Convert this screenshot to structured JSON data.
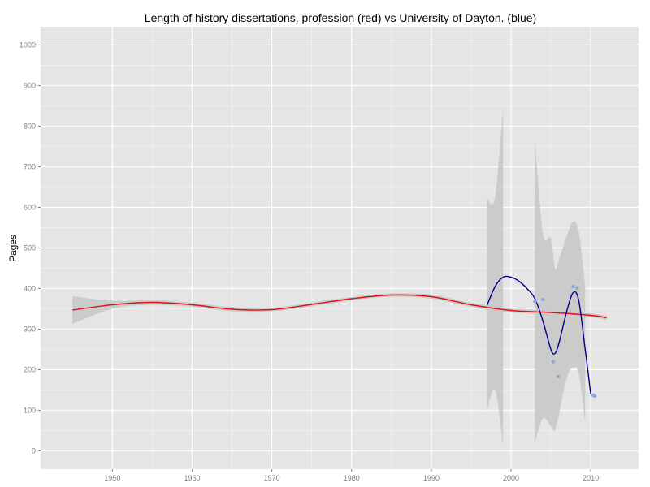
{
  "chart_data": {
    "type": "line",
    "title": "Length of history dissertations, profession (red) vs University of Dayton. (blue)",
    "xlabel": "",
    "ylabel": "Pages",
    "xlim": [
      1941,
      2016
    ],
    "ylim": [
      -45,
      1045
    ],
    "x_ticks": [
      1950,
      1960,
      1970,
      1980,
      1990,
      2000,
      2010
    ],
    "y_ticks": [
      0,
      100,
      200,
      300,
      400,
      500,
      600,
      700,
      800,
      900,
      1000
    ],
    "grid": true,
    "legend": "none",
    "colors": {
      "panel": "#e5e5e5",
      "grid_major": "#ffffff",
      "grid_minor": "#f2f2f2",
      "ribbon": "#c8c8c8",
      "profession": "#dd1111",
      "dayton": "#00008b",
      "points": "#8aa8e0",
      "tick_text": "#7f7f7f"
    },
    "series": [
      {
        "color": "red",
        "x": [
          1945,
          1950,
          1955,
          1960,
          1965,
          1970,
          1975,
          1980,
          1985,
          1990,
          1995,
          2000,
          2005,
          2010,
          2012
        ],
        "y": [
          347,
          360,
          366,
          360,
          349,
          348,
          361,
          375,
          384,
          380,
          360,
          346,
          341,
          334,
          328
        ],
        "band_low": [
          313,
          350,
          360,
          355,
          344,
          344,
          356,
          371,
          380,
          375,
          355,
          341,
          336,
          329,
          323
        ],
        "band_high": [
          381,
          370,
          372,
          365,
          354,
          352,
          366,
          379,
          388,
          385,
          365,
          351,
          346,
          339,
          333
        ]
      },
      {
        "color": "blue",
        "x": [
          1997,
          1998,
          1999,
          2000,
          2001,
          2002,
          2003,
          2004,
          2005,
          2005.5,
          2006,
          2007,
          2007.8,
          2008.5,
          2009.3,
          2010
        ],
        "y": [
          359,
          405,
          428,
          428,
          418,
          400,
          375,
          320,
          250,
          240,
          265,
          345,
          390,
          370,
          250,
          140
        ],
        "band_low": [
          100,
          150,
          15,
          null,
          null,
          null,
          20,
          80,
          60,
          50,
          90,
          180,
          205,
          190,
          70,
          null
        ],
        "band_high": [
          620,
          625,
          840,
          null,
          null,
          null,
          765,
          535,
          525,
          450,
          470,
          530,
          565,
          540,
          405,
          null
        ]
      }
    ],
    "points": [
      {
        "x": 2003.0,
        "y": 368
      },
      {
        "x": 2004.0,
        "y": 373
      },
      {
        "x": 2005.3,
        "y": 220
      },
      {
        "x": 2005.9,
        "y": 183
      },
      {
        "x": 2007.8,
        "y": 405
      },
      {
        "x": 2008.3,
        "y": 401
      },
      {
        "x": 2010.3,
        "y": 137
      },
      {
        "x": 2010.5,
        "y": 135
      }
    ]
  }
}
